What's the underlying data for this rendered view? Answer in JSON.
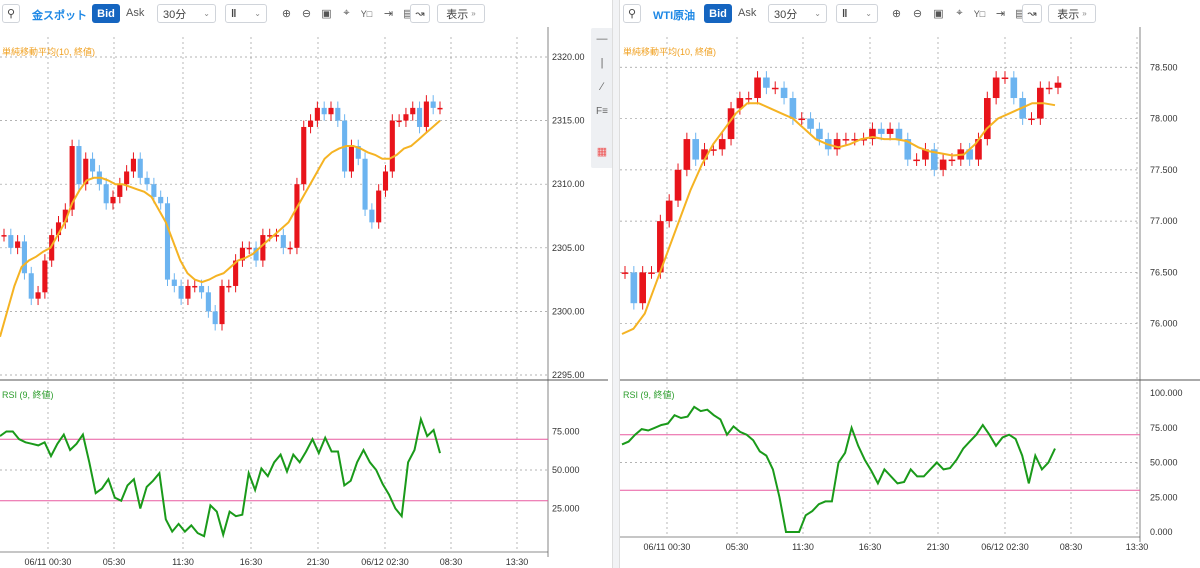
{
  "left": {
    "symbol": "金スポット",
    "bid_label": "Bid",
    "ask_label": "Ask",
    "timeframe": "30分",
    "display_label": "表示",
    "ma_label": "単純移動平均(10, 終値)",
    "rsi_label": "RSI (9, 終値)",
    "price_ticks": [
      "2320.00",
      "2315.00",
      "2310.00",
      "2305.00",
      "2300.00",
      "2295.00"
    ],
    "rsi_ticks": [
      "75.000",
      "50.000",
      "25.000"
    ],
    "x_ticks": [
      "06/11 00:30",
      "05:30",
      "11:30",
      "16:30",
      "21:30",
      "06/12 02:30",
      "08:30",
      "13:30"
    ]
  },
  "right": {
    "symbol": "WTI原油",
    "bid_label": "Bid",
    "ask_label": "Ask",
    "timeframe": "30分",
    "display_label": "表示",
    "ma_label": "単純移動平均(10, 終値)",
    "rsi_label": "RSI (9, 終値)",
    "price_ticks": [
      "78.500",
      "78.000",
      "77.500",
      "77.000",
      "76.500",
      "76.000"
    ],
    "rsi_ticks": [
      "100.000",
      "75.000",
      "50.000",
      "25.000",
      "0.000"
    ],
    "x_ticks": [
      "06/11 00:30",
      "05:30",
      "11:30",
      "16:30",
      "21:30",
      "06/12 02:30",
      "08:30",
      "13:30"
    ]
  },
  "colors": {
    "up": "#e8141b",
    "down": "#6cb4f0",
    "ma": "#f5b323",
    "rsi": "#1a9a1a",
    "band": "#e85aa0",
    "grid": "#9a9a9a"
  },
  "chart_data": [
    {
      "type": "candlestick",
      "title": "金スポット",
      "indicator": "単純移動平均(10, 終値)",
      "ylim": [
        2295,
        2320
      ],
      "closes": [
        2306,
        2305,
        2305.5,
        2303,
        2301,
        2301.5,
        2304,
        2306,
        2307,
        2308,
        2313,
        2310,
        2312,
        2311,
        2310,
        2308.5,
        2309,
        2310,
        2311,
        2312,
        2310.5,
        2310,
        2309,
        2308.5,
        2302.5,
        2302,
        2301,
        2302,
        2302,
        2301.5,
        2300,
        2299,
        2302,
        2302,
        2304,
        2305,
        2305,
        2304,
        2306,
        2306,
        2306,
        2305,
        2305,
        2310,
        2314.5,
        2315,
        2316,
        2315.5,
        2316,
        2315,
        2311,
        2313,
        2312,
        2308,
        2307,
        2309.5,
        2311,
        2315,
        2315,
        2315.5,
        2316,
        2314.5,
        2316.5,
        2316,
        2316
      ],
      "ma": [
        2298,
        2300,
        2302,
        2303.5,
        2304,
        2304.3,
        2304.7,
        2305,
        2306,
        2307,
        2308.5,
        2309.5,
        2310.3,
        2310.5,
        2310.5,
        2310.3,
        2310,
        2310,
        2309.8,
        2309.6,
        2309.4,
        2309,
        2308,
        2307,
        2305.5,
        2304,
        2303,
        2302.5,
        2302.3,
        2302.5,
        2302.8,
        2303,
        2303.5,
        2304,
        2304.2,
        2304.5,
        2305,
        2305.5,
        2306,
        2306.5,
        2307,
        2308,
        2309,
        2310,
        2311,
        2312,
        2312.5,
        2312.8,
        2313,
        2313,
        2312.8,
        2312.5,
        2312.3,
        2312,
        2312,
        2312.3,
        2312.8,
        2313,
        2313.5,
        2314,
        2314.5,
        2315
      ]
    },
    {
      "type": "line",
      "title": "RSI (9, 終値)",
      "ylim": [
        0,
        100
      ],
      "guides": [
        70,
        30
      ],
      "values": [
        72,
        75,
        75,
        70,
        68,
        67,
        66,
        68,
        59,
        67,
        73,
        63,
        67,
        73,
        55,
        35,
        38,
        44,
        32,
        30,
        40,
        44,
        25,
        39,
        43,
        48,
        18,
        10,
        15,
        10,
        14,
        9,
        7,
        27,
        23,
        8,
        23,
        20,
        21,
        48,
        37,
        51,
        46,
        55,
        60,
        49,
        60,
        55,
        62,
        70,
        61,
        71,
        62,
        62,
        40,
        43,
        55,
        63,
        55,
        50,
        41,
        34,
        25,
        20,
        55,
        63,
        83,
        72,
        76,
        61
      ]
    },
    {
      "type": "candlestick",
      "title": "WTI原油",
      "indicator": "単純移動平均(10, 終値)",
      "ylim": [
        75.5,
        78.6
      ],
      "closes": [
        76.5,
        76.2,
        76.5,
        76.5,
        77.0,
        77.2,
        77.5,
        77.8,
        77.6,
        77.7,
        77.7,
        77.8,
        78.1,
        78.2,
        78.2,
        78.4,
        78.3,
        78.3,
        78.2,
        78.0,
        78.0,
        77.9,
        77.8,
        77.7,
        77.8,
        77.8,
        77.8,
        77.8,
        77.9,
        77.85,
        77.9,
        77.8,
        77.6,
        77.6,
        77.7,
        77.5,
        77.6,
        77.6,
        77.7,
        77.6,
        77.8,
        78.2,
        78.4,
        78.4,
        78.2,
        78.0,
        78.0,
        78.3,
        78.3,
        78.35
      ],
      "ma": [
        75.9,
        75.95,
        76.1,
        76.4,
        76.7,
        77.0,
        77.3,
        77.55,
        77.75,
        77.9,
        78.05,
        78.15,
        78.15,
        78.1,
        78.05,
        78.0,
        77.9,
        77.8,
        77.75,
        77.72,
        77.75,
        77.8,
        77.82,
        77.8,
        77.8,
        77.78,
        77.72,
        77.68,
        77.66,
        77.64,
        77.65,
        77.75,
        77.9,
        78.0,
        78.05,
        78.1,
        78.15,
        78.15,
        78.13
      ]
    },
    {
      "type": "line",
      "title": "RSI (9, 終値)",
      "ylim": [
        0,
        100
      ],
      "guides": [
        70,
        30
      ],
      "values": [
        63,
        65,
        70,
        74,
        73,
        75,
        77,
        78,
        84,
        82,
        83,
        90,
        87,
        88,
        84,
        81,
        70,
        76,
        72,
        70,
        66,
        58,
        55,
        45,
        25,
        0,
        0,
        0,
        12,
        15,
        20,
        22,
        22,
        50,
        57,
        75,
        62,
        52,
        44,
        35,
        45,
        40,
        35,
        36,
        45,
        40,
        40,
        45,
        50,
        45,
        46,
        52,
        60,
        65,
        70,
        77,
        70,
        62,
        68,
        70,
        67,
        55,
        35,
        55,
        45,
        50,
        60
      ]
    }
  ]
}
